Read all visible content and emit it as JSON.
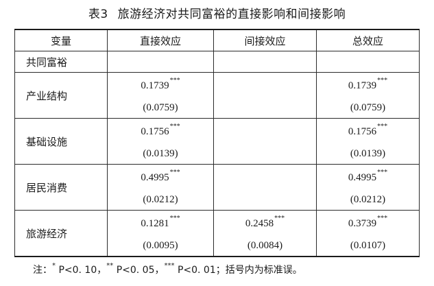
{
  "title": {
    "label": "表3",
    "text": "旅游经济对共同富裕的直接影响和间接影响"
  },
  "table": {
    "headers": [
      "变量",
      "直接效应",
      "间接效应",
      "总效应"
    ],
    "group_label": "共同富裕",
    "rows": [
      {
        "variable": "产业结构",
        "direct": {
          "coef": "0.1739",
          "stars": "***",
          "se": "(0.0759)"
        },
        "indirect": {
          "coef": "",
          "stars": "",
          "se": ""
        },
        "total": {
          "coef": "0.1739",
          "stars": "***",
          "se": "(0.0759)"
        }
      },
      {
        "variable": "基础设施",
        "direct": {
          "coef": "0.1756",
          "stars": "***",
          "se": "(0.0139)"
        },
        "indirect": {
          "coef": "",
          "stars": "",
          "se": ""
        },
        "total": {
          "coef": "0.1756",
          "stars": "***",
          "se": "(0.0139)"
        }
      },
      {
        "variable": "居民消费",
        "direct": {
          "coef": "0.4995",
          "stars": "***",
          "se": "(0.0212)"
        },
        "indirect": {
          "coef": "",
          "stars": "",
          "se": ""
        },
        "total": {
          "coef": "0.4995",
          "stars": "***",
          "se": "(0.0212)"
        }
      },
      {
        "variable": "旅游经济",
        "direct": {
          "coef": "0.1281",
          "stars": "***",
          "se": "(0.0095)"
        },
        "indirect": {
          "coef": "0.2458",
          "stars": "***",
          "se": "(0.0084)"
        },
        "total": {
          "coef": "0.3739",
          "stars": "***",
          "se": "(0.0107)"
        }
      }
    ]
  },
  "footnote": {
    "prefix": "注：",
    "items": [
      {
        "stars": "*",
        "text": " P<0. 10，"
      },
      {
        "stars": "**",
        "text": " P<0. 05，"
      },
      {
        "stars": "***",
        "text": " P<0. 01；"
      }
    ],
    "suffix": "括号内为标准误。"
  }
}
